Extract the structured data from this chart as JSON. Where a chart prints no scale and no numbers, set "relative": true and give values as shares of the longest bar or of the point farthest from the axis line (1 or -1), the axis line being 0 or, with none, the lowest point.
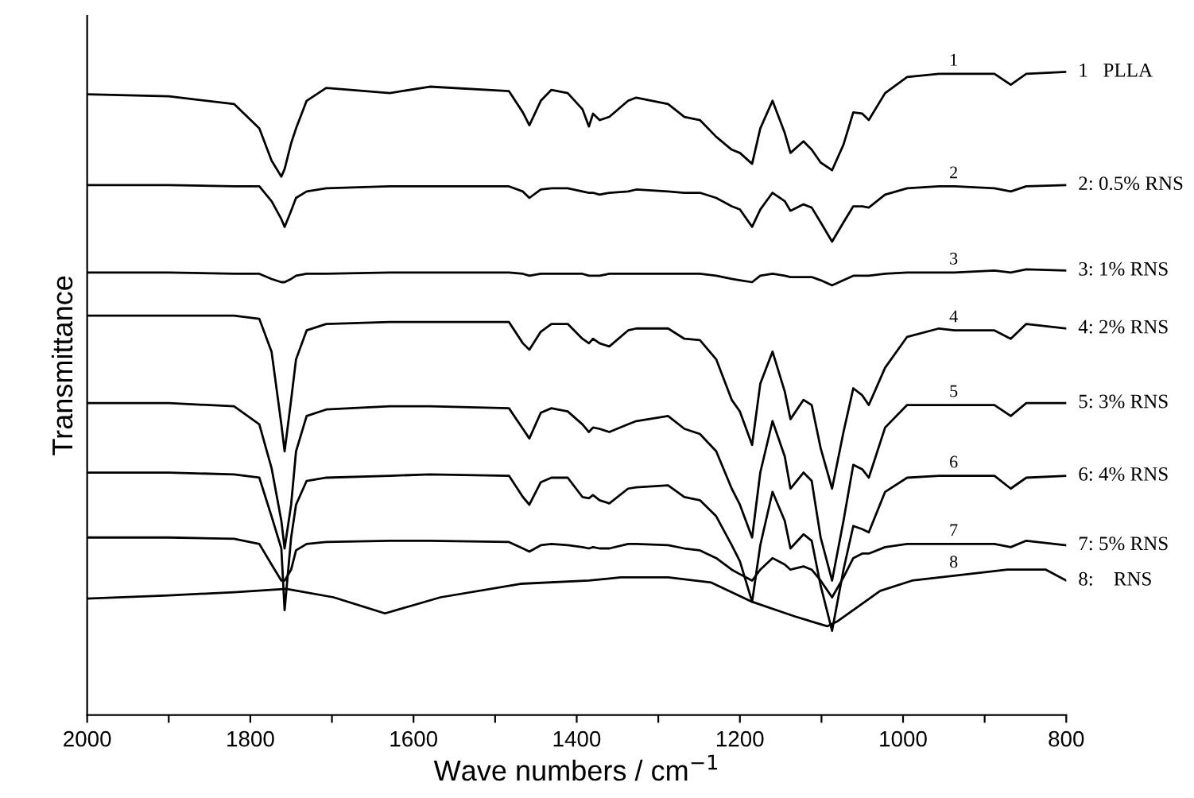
{
  "chart_data": {
    "type": "line",
    "relative": true,
    "xlabel": "Wave numbers / cm$^{−1}$",
    "ylabel": "Transmittance",
    "x": [
      2000,
      1900,
      1820,
      1789,
      1774,
      1762,
      1758,
      1750,
      1744,
      1731,
      1707,
      1629,
      1580,
      1483,
      1466,
      1458,
      1444,
      1431,
      1411,
      1393,
      1385,
      1380,
      1372,
      1360,
      1337,
      1327,
      1288,
      1268,
      1249,
      1229,
      1210,
      1200,
      1185,
      1175,
      1160,
      1145,
      1138,
      1122,
      1112,
      1101,
      1087,
      1073,
      1061,
      1050,
      1042,
      1022,
      995,
      956,
      937,
      888,
      868,
      849,
      800
    ],
    "xlim": [
      2000,
      800
    ],
    "xticks": [
      2000,
      {
        "value": 1900,
        "label": null
      },
      1800,
      {
        "value": 1700,
        "label": null
      },
      1600,
      {
        "value": 1500,
        "label": null
      },
      1400,
      {
        "value": 1300,
        "label": null
      },
      1200,
      {
        "value": 1100,
        "label": null
      },
      1000,
      {
        "value": 900,
        "label": null
      },
      800
    ],
    "tick_labels": "x",
    "grid": false,
    "legend": "right",
    "marker": "none",
    "line_style": "solid",
    "series": [
      {
        "name": "1   PLLA",
        "color": "#000000",
        "values": [
          0.965,
          0.962,
          0.95,
          0.912,
          0.862,
          0.837,
          0.849,
          0.889,
          0.912,
          0.955,
          0.975,
          0.967,
          0.977,
          0.97,
          0.937,
          0.917,
          0.955,
          0.972,
          0.967,
          0.942,
          0.915,
          0.935,
          0.925,
          0.93,
          0.955,
          0.96,
          0.95,
          0.93,
          0.925,
          0.899,
          0.879,
          0.874,
          0.857,
          0.912,
          0.955,
          0.905,
          0.874,
          0.892,
          0.879,
          0.859,
          0.847,
          0.887,
          0.937,
          0.935,
          0.925,
          0.967,
          0.992,
          0.997,
          0.997,
          0.997,
          0.98,
          0.997,
          1.0
        ]
      },
      {
        "name": "2: 0.5% RNS",
        "color": "#000000",
        "values": [
          0.824,
          0.824,
          0.822,
          0.822,
          0.799,
          0.771,
          0.759,
          0.784,
          0.804,
          0.814,
          0.819,
          0.822,
          0.822,
          0.822,
          0.814,
          0.804,
          0.817,
          0.819,
          0.819,
          0.814,
          0.812,
          0.812,
          0.809,
          0.812,
          0.814,
          0.817,
          0.814,
          0.812,
          0.812,
          0.804,
          0.791,
          0.786,
          0.759,
          0.786,
          0.812,
          0.799,
          0.784,
          0.794,
          0.789,
          0.766,
          0.736,
          0.766,
          0.791,
          0.791,
          0.789,
          0.809,
          0.819,
          0.822,
          0.822,
          0.819,
          0.814,
          0.822,
          0.824
        ]
      },
      {
        "name": "3: 1% RNS",
        "color": "#000000",
        "values": [
          0.688,
          0.688,
          0.686,
          0.686,
          0.678,
          0.673,
          0.673,
          0.678,
          0.683,
          0.686,
          0.686,
          0.688,
          0.688,
          0.688,
          0.686,
          0.683,
          0.686,
          0.686,
          0.686,
          0.686,
          0.683,
          0.683,
          0.683,
          0.686,
          0.686,
          0.686,
          0.686,
          0.686,
          0.686,
          0.683,
          0.678,
          0.676,
          0.673,
          0.683,
          0.686,
          0.683,
          0.681,
          0.681,
          0.681,
          0.676,
          0.668,
          0.676,
          0.683,
          0.683,
          0.683,
          0.686,
          0.688,
          0.688,
          0.688,
          0.691,
          0.688,
          0.693,
          0.691
        ]
      },
      {
        "name": "4: 2% RNS",
        "color": "#000000",
        "values": [
          0.621,
          0.621,
          0.621,
          0.616,
          0.565,
          0.452,
          0.41,
          0.49,
          0.553,
          0.598,
          0.608,
          0.611,
          0.611,
          0.611,
          0.578,
          0.568,
          0.596,
          0.608,
          0.608,
          0.585,
          0.578,
          0.585,
          0.578,
          0.573,
          0.598,
          0.601,
          0.601,
          0.585,
          0.583,
          0.553,
          0.49,
          0.472,
          0.42,
          0.515,
          0.565,
          0.503,
          0.46,
          0.49,
          0.482,
          0.415,
          0.352,
          0.44,
          0.508,
          0.497,
          0.482,
          0.54,
          0.588,
          0.601,
          0.598,
          0.598,
          0.585,
          0.608,
          0.601
        ]
      },
      {
        "name": "5: 3% RNS",
        "color": "#000000",
        "values": [
          0.485,
          0.485,
          0.48,
          0.452,
          0.384,
          0.302,
          0.259,
          0.327,
          0.41,
          0.465,
          0.475,
          0.48,
          0.48,
          0.477,
          0.445,
          0.43,
          0.47,
          0.477,
          0.472,
          0.452,
          0.44,
          0.447,
          0.445,
          0.44,
          0.452,
          0.457,
          0.465,
          0.445,
          0.437,
          0.41,
          0.352,
          0.327,
          0.276,
          0.377,
          0.457,
          0.402,
          0.352,
          0.377,
          0.364,
          0.276,
          0.209,
          0.302,
          0.389,
          0.382,
          0.369,
          0.447,
          0.482,
          0.482,
          0.482,
          0.482,
          0.465,
          0.485,
          0.485
        ]
      },
      {
        "name": "6: 4% RNS",
        "color": "#000000",
        "values": [
          0.377,
          0.377,
          0.374,
          0.369,
          0.309,
          0.259,
          0.163,
          0.276,
          0.327,
          0.364,
          0.369,
          0.372,
          0.374,
          0.372,
          0.339,
          0.327,
          0.362,
          0.369,
          0.369,
          0.339,
          0.337,
          0.342,
          0.334,
          0.329,
          0.352,
          0.354,
          0.357,
          0.339,
          0.334,
          0.309,
          0.264,
          0.239,
          0.176,
          0.264,
          0.347,
          0.302,
          0.259,
          0.281,
          0.271,
          0.201,
          0.131,
          0.226,
          0.294,
          0.289,
          0.284,
          0.347,
          0.369,
          0.372,
          0.372,
          0.372,
          0.352,
          0.369,
          0.372
        ]
      },
      {
        "name": "7: 5% RNS",
        "color": "#000000",
        "values": [
          0.276,
          0.276,
          0.274,
          0.266,
          0.234,
          0.209,
          0.209,
          0.226,
          0.256,
          0.266,
          0.269,
          0.271,
          0.271,
          0.269,
          0.259,
          0.254,
          0.264,
          0.266,
          0.264,
          0.261,
          0.259,
          0.261,
          0.259,
          0.259,
          0.266,
          0.266,
          0.264,
          0.259,
          0.256,
          0.244,
          0.226,
          0.219,
          0.209,
          0.226,
          0.244,
          0.234,
          0.226,
          0.231,
          0.226,
          0.209,
          0.183,
          0.214,
          0.244,
          0.251,
          0.251,
          0.261,
          0.266,
          0.266,
          0.266,
          0.266,
          0.261,
          0.271,
          0.264
        ]
      },
      {
        "name": "8:    RNS",
        "color": "#000000",
        "x": [
          2000,
          1900,
          1820,
          1756,
          1698,
          1635,
          1567,
          1469,
          1385,
          1346,
          1288,
          1235,
          1185,
          1132,
          1093,
          1080,
          1028,
          989,
          942,
          872,
          825,
          800
        ],
        "values": [
          0.181,
          0.186,
          0.191,
          0.196,
          0.183,
          0.158,
          0.183,
          0.204,
          0.209,
          0.214,
          0.214,
          0.206,
          0.176,
          0.153,
          0.138,
          0.146,
          0.193,
          0.209,
          0.216,
          0.226,
          0.226,
          0.209
        ]
      }
    ],
    "annotations": [
      "1",
      "2",
      "3",
      "4",
      "5",
      "6",
      "7",
      "8"
    ]
  }
}
